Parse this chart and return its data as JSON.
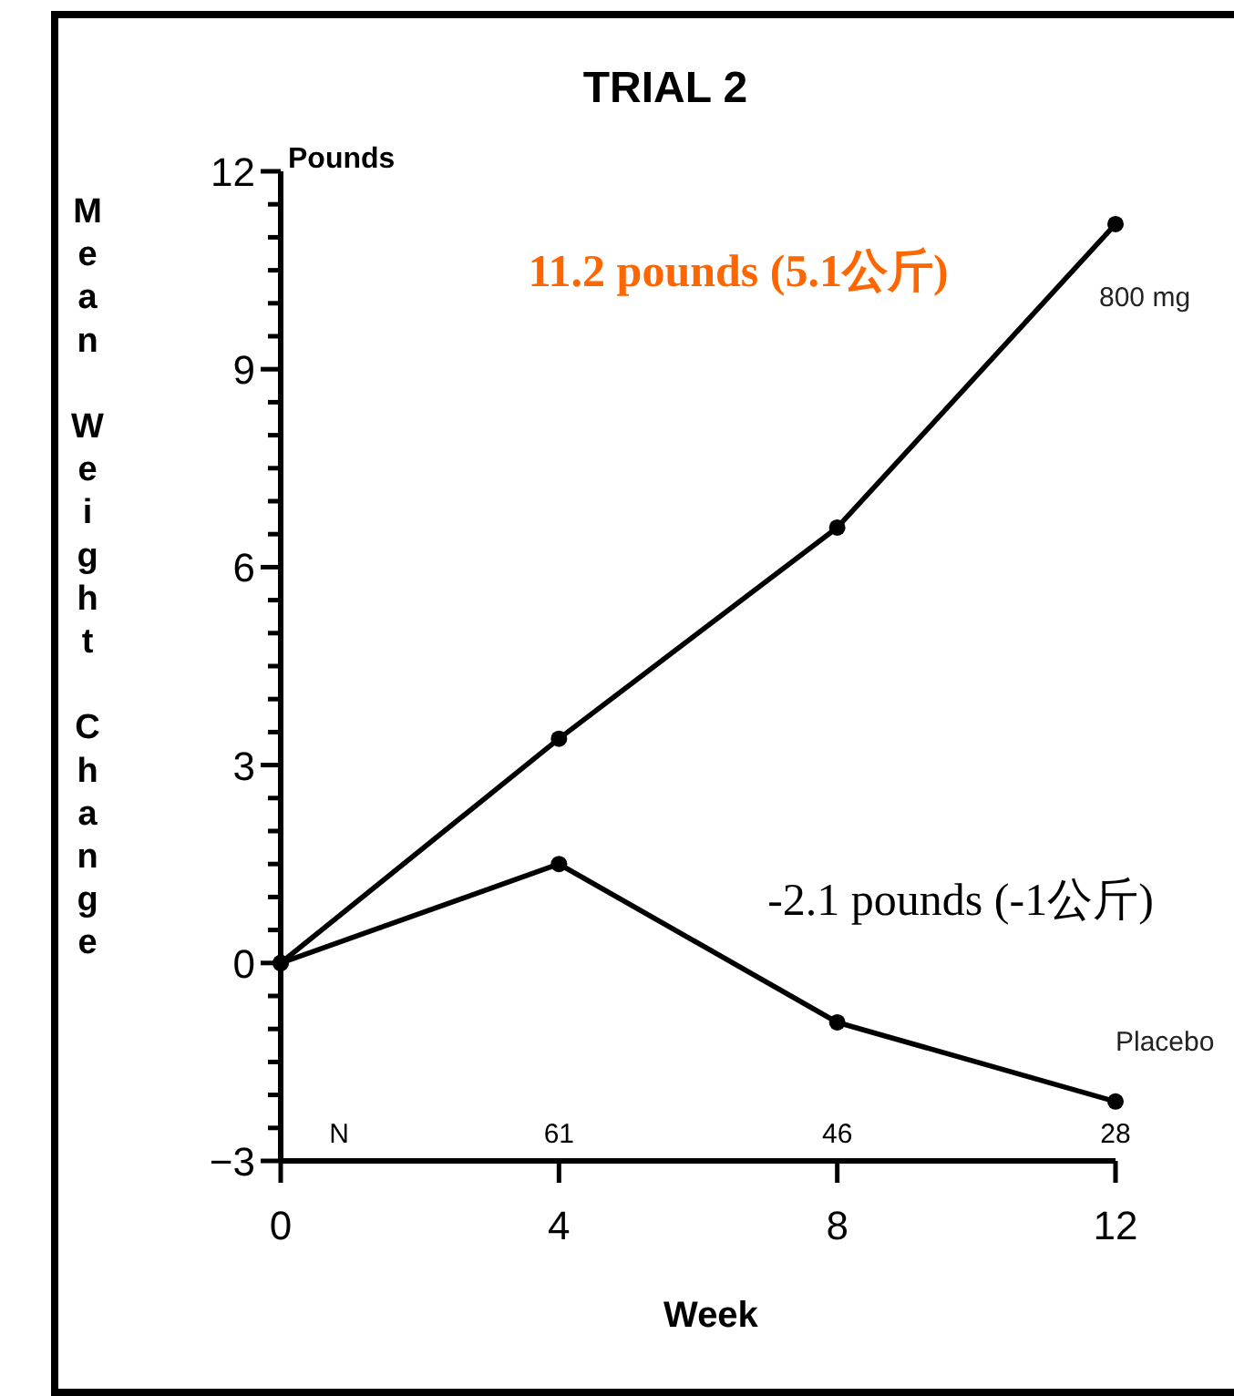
{
  "chart_data": {
    "type": "line",
    "title": "TRIAL 2",
    "xlabel": "Week",
    "ylabel": "Mean Weight Change",
    "x": [
      0,
      4,
      8,
      12
    ],
    "series": [
      {
        "name": "800 mg",
        "color": "#000000",
        "values": [
          0,
          3.4,
          6.6,
          11.2
        ]
      },
      {
        "name": "Placebo",
        "color": "#000000",
        "values": [
          0,
          1.5,
          -0.9,
          -2.1
        ]
      }
    ],
    "xlim": [
      0,
      12
    ],
    "xticks": [
      0,
      4,
      8,
      12
    ],
    "ylim": [
      -3,
      12
    ],
    "yticks": [
      -3,
      {
        "value": -2.5,
        "label": null
      },
      {
        "value": -2,
        "label": null
      },
      {
        "value": -1.5,
        "label": null
      },
      {
        "value": -1,
        "label": null
      },
      {
        "value": -0.5,
        "label": null
      },
      0,
      {
        "value": 0.5,
        "label": null
      },
      {
        "value": 1,
        "label": null
      },
      {
        "value": 1.5,
        "label": null
      },
      {
        "value": 2,
        "label": null
      },
      {
        "value": 2.5,
        "label": null
      },
      3,
      {
        "value": 3.5,
        "label": null
      },
      {
        "value": 4,
        "label": null
      },
      {
        "value": 4.5,
        "label": null
      },
      {
        "value": 5,
        "label": null
      },
      {
        "value": 5.5,
        "label": null
      },
      6,
      {
        "value": 6.5,
        "label": null
      },
      {
        "value": 7,
        "label": null
      },
      {
        "value": 7.5,
        "label": null
      },
      {
        "value": 8,
        "label": null
      },
      {
        "value": 8.5,
        "label": null
      },
      9,
      {
        "value": 9.5,
        "label": null
      },
      {
        "value": 10,
        "label": null
      },
      {
        "value": 10.5,
        "label": null
      },
      {
        "value": 11,
        "label": null
      },
      {
        "value": 11.5,
        "label": null
      },
      12
    ],
    "marker": "circle",
    "line_style": "solid",
    "grid": false,
    "annotations": [
      "11.2 pounds (5.1公斤)",
      "-2.1 pounds (-1公斤)",
      "Pounds",
      "N",
      "61",
      "46",
      "28"
    ]
  }
}
